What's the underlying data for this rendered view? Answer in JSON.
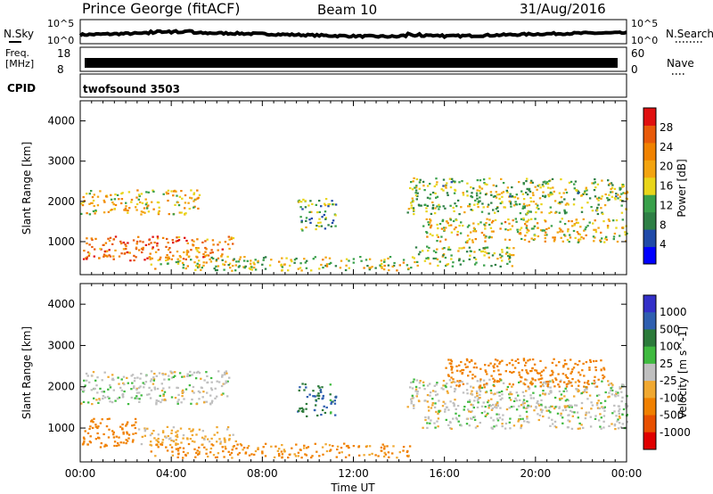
{
  "header": {
    "station": "Prince George (fitACF)",
    "beam": "Beam 10",
    "date": "31/Aug/2016"
  },
  "noise_panel": {
    "left_label": "N.Sky",
    "right_label": "N.Search",
    "ticks_left": [
      "10^5",
      "10^0"
    ],
    "ticks_right": [
      "10^5",
      "10^0"
    ]
  },
  "freq_panel": {
    "left_label_top": "Freq.",
    "left_label_unit": "[MHz]",
    "right_label": "Nave",
    "ticks_left": [
      "18",
      "8"
    ],
    "ticks_right": [
      "60",
      "0"
    ]
  },
  "cpid": {
    "label": "CPID",
    "value": "twofsound 3503"
  },
  "colors": {
    "power_scale": [
      "#0000ff",
      "#204aa8",
      "#2e7f45",
      "#39a04a",
      "#e9d51a",
      "#f3a410",
      "#f08200",
      "#e85a0a",
      "#e01010"
    ],
    "velocity_scale": [
      "#3330c8",
      "#2f5fb0",
      "#2b7a3a",
      "#3fba3f",
      "#bfbfbf",
      "#f0a830",
      "#f08000",
      "#e85000",
      "#e00000"
    ]
  },
  "chart_data": [
    {
      "type": "heatmap",
      "name_hint": "power-panel",
      "xlabel": "",
      "ylabel": "Slant Range [km]",
      "x_ticks": [
        "00:00",
        "04:00",
        "08:00",
        "12:00",
        "16:00",
        "20:00",
        "00:00"
      ],
      "x_range_hours": [
        0,
        24
      ],
      "y_ticks": [
        1000,
        2000,
        3000,
        4000
      ],
      "ylim": [
        180,
        4500
      ],
      "colorbar": {
        "label": "Power [dB]",
        "ticks": [
          4,
          8,
          12,
          16,
          20,
          24,
          28
        ],
        "range": [
          0,
          32
        ]
      },
      "echo_bands": [
        {
          "t": [
            0.0,
            5.2
          ],
          "r": [
            1700,
            2300
          ],
          "value": 18
        },
        {
          "t": [
            0.0,
            6.8
          ],
          "r": [
            550,
            1150
          ],
          "value": 24
        },
        {
          "t": [
            3.0,
            14.5
          ],
          "r": [
            300,
            650
          ],
          "value": 16
        },
        {
          "t": [
            9.5,
            11.2
          ],
          "r": [
            1300,
            2100
          ],
          "value": 12
        },
        {
          "t": [
            14.3,
            24.0
          ],
          "r": [
            1700,
            2600
          ],
          "value": 14
        },
        {
          "t": [
            15.0,
            24.0
          ],
          "r": [
            1000,
            1600
          ],
          "value": 18
        },
        {
          "t": [
            14.5,
            19.0
          ],
          "r": [
            400,
            900
          ],
          "value": 14
        }
      ]
    },
    {
      "type": "heatmap",
      "name_hint": "velocity-panel",
      "xlabel": "Time UT",
      "ylabel": "Slant Range [km]",
      "x_ticks": [
        "00:00",
        "04:00",
        "08:00",
        "12:00",
        "16:00",
        "20:00",
        "00:00"
      ],
      "x_range_hours": [
        0,
        24
      ],
      "y_ticks": [
        1000,
        2000,
        3000,
        4000
      ],
      "ylim": [
        180,
        4500
      ],
      "colorbar": {
        "label": "Velocity [m s^-1]",
        "ticks": [
          "1000",
          "500",
          "100",
          "25",
          "-25",
          "-100",
          "-500",
          "-1000"
        ]
      },
      "echo_bands": [
        {
          "t": [
            0.0,
            6.5
          ],
          "r": [
            1600,
            2400
          ],
          "value": 0
        },
        {
          "t": [
            0.0,
            2.5
          ],
          "r": [
            550,
            1250
          ],
          "value": -200
        },
        {
          "t": [
            2.5,
            6.8
          ],
          "r": [
            600,
            1050
          ],
          "value": -50
        },
        {
          "t": [
            3.0,
            14.5
          ],
          "r": [
            300,
            650
          ],
          "value": -120
        },
        {
          "t": [
            9.5,
            11.2
          ],
          "r": [
            1300,
            2100
          ],
          "value": 100
        },
        {
          "t": [
            14.3,
            24.0
          ],
          "r": [
            1500,
            2200
          ],
          "value": 0
        },
        {
          "t": [
            16.0,
            23.0
          ],
          "r": [
            2000,
            2700
          ],
          "value": -300
        },
        {
          "t": [
            15.0,
            24.0
          ],
          "r": [
            1000,
            1600
          ],
          "value": 0
        }
      ]
    }
  ]
}
